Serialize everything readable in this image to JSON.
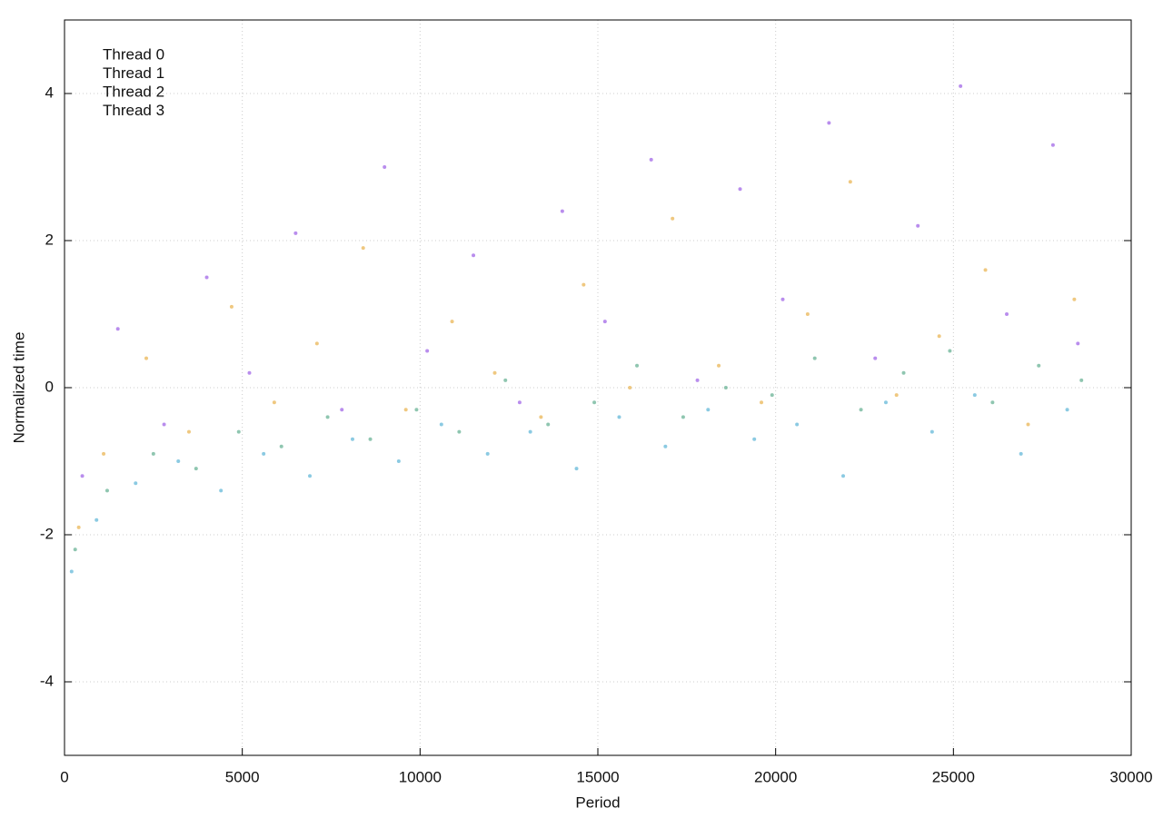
{
  "chart_data": {
    "type": "scatter",
    "x_label": "Period",
    "y_label": "Normalized time",
    "xlim": [
      0,
      30000
    ],
    "xticks": [
      0,
      5000,
      10000,
      15000,
      20000,
      25000,
      30000
    ],
    "ylim": [
      -5,
      5
    ],
    "yticks": [
      -4,
      -2,
      0,
      2,
      4
    ],
    "grid": true,
    "legend": "top-left",
    "series": [
      {
        "name": "Thread 0",
        "color": "#9b5de5",
        "x": [
          500,
          1500,
          2800,
          4000,
          5200,
          6500,
          7800,
          9000,
          10200,
          11500,
          12800,
          14000,
          15200,
          16500,
          17800,
          19000,
          20200,
          21500,
          22800,
          24000,
          25200,
          26500,
          27800,
          28500
        ],
        "values": [
          -1.2,
          0.8,
          -0.5,
          1.5,
          0.2,
          2.1,
          -0.3,
          3.0,
          0.5,
          1.8,
          -0.2,
          2.4,
          0.9,
          3.1,
          0.1,
          2.7,
          1.2,
          3.6,
          0.4,
          2.2,
          4.1,
          1.0,
          3.3,
          0.6
        ]
      },
      {
        "name": "Thread 1",
        "color": "#5fae8e",
        "x": [
          300,
          1200,
          2500,
          3700,
          4900,
          6100,
          7400,
          8600,
          9900,
          11100,
          12400,
          13600,
          14900,
          16100,
          17400,
          18600,
          19900,
          21100,
          22400,
          23600,
          24900,
          26100,
          27400,
          28600
        ],
        "values": [
          -2.2,
          -1.4,
          -0.9,
          -1.1,
          -0.6,
          -0.8,
          -0.4,
          -0.7,
          -0.3,
          -0.6,
          0.1,
          -0.5,
          -0.2,
          0.3,
          -0.4,
          0.0,
          -0.1,
          0.4,
          -0.3,
          0.2,
          0.5,
          -0.2,
          0.3,
          0.1
        ]
      },
      {
        "name": "Thread 2",
        "color": "#5ab4d6",
        "x": [
          200,
          900,
          2000,
          3200,
          4400,
          5600,
          6900,
          8100,
          9400,
          10600,
          11900,
          13100,
          14400,
          15600,
          16900,
          18100,
          19400,
          20600,
          21900,
          23100,
          24400,
          25600,
          26900,
          28200
        ],
        "values": [
          -2.5,
          -1.8,
          -1.3,
          -1.0,
          -1.4,
          -0.9,
          -1.2,
          -0.7,
          -1.0,
          -0.5,
          -0.9,
          -0.6,
          -1.1,
          -0.4,
          -0.8,
          -0.3,
          -0.7,
          -0.5,
          -1.2,
          -0.2,
          -0.6,
          -0.1,
          -0.9,
          -0.3
        ]
      },
      {
        "name": "Thread 3",
        "color": "#e8b04a",
        "x": [
          400,
          1100,
          2300,
          3500,
          4700,
          5900,
          7100,
          8400,
          9600,
          10900,
          12100,
          13400,
          14600,
          15900,
          17100,
          18400,
          19600,
          20900,
          22100,
          23400,
          24600,
          25900,
          27100,
          28400
        ],
        "values": [
          -1.9,
          -0.9,
          0.4,
          -0.6,
          1.1,
          -0.2,
          0.6,
          1.9,
          -0.3,
          0.9,
          0.2,
          -0.4,
          1.4,
          0.0,
          2.3,
          0.3,
          -0.2,
          1.0,
          2.8,
          -0.1,
          0.7,
          1.6,
          -0.5,
          1.2
        ]
      }
    ]
  }
}
